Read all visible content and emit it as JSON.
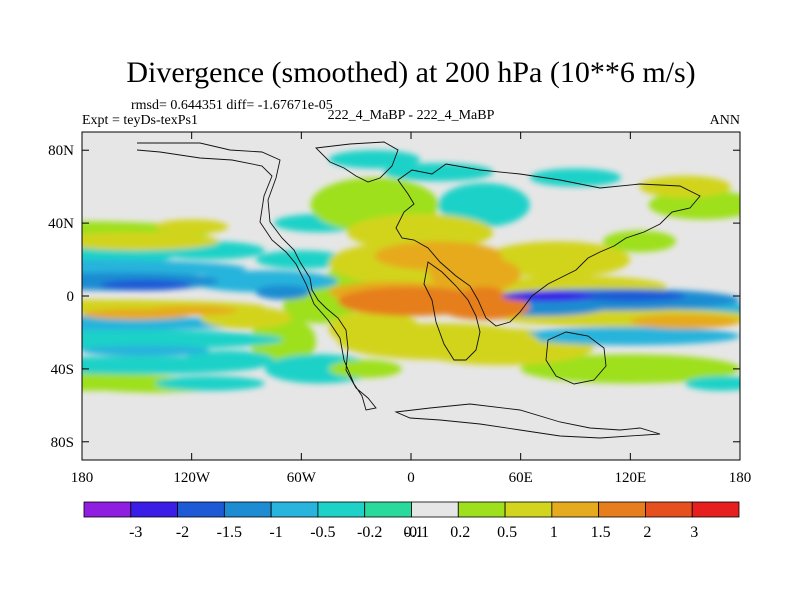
{
  "chart_data": {
    "type": "heatmap",
    "title": "Divergence (smoothed) at 200 hPa (10**6 m/s)",
    "stats_text": "rmsd= 0.644351 diff= -1.67671e-05",
    "left_label": "Expt = teyDs-texPs1",
    "center_label": "222_4_MaBP - 222_4_MaBP",
    "right_label": "ANN",
    "x_range": [
      -180,
      180
    ],
    "y_range": [
      -90,
      90
    ],
    "x_ticks": [
      {
        "value": -180,
        "label": "180"
      },
      {
        "value": -120,
        "label": "120W"
      },
      {
        "value": -60,
        "label": "60W"
      },
      {
        "value": 0,
        "label": "0"
      },
      {
        "value": 60,
        "label": "60E"
      },
      {
        "value": 120,
        "label": "120E"
      },
      {
        "value": 180,
        "label": "180"
      }
    ],
    "y_ticks": [
      {
        "value": 80,
        "label": "80N"
      },
      {
        "value": 40,
        "label": "40N"
      },
      {
        "value": 0,
        "label": "0"
      },
      {
        "value": -40,
        "label": "40S"
      },
      {
        "value": -80,
        "label": "80S"
      }
    ],
    "colorbar": {
      "labels": [
        "-3",
        "-2",
        "-1.5",
        "-1",
        "-0.5",
        "-0.2",
        "-0.1",
        "0.1",
        "0.2",
        "0.5",
        "1",
        "1.5",
        "2",
        "3"
      ],
      "colors": [
        "#8f1ee0",
        "#3a1ee8",
        "#1e5ad6",
        "#1e8cd2",
        "#28b4dc",
        "#1ed2c8",
        "#2ad99c",
        "#e6e6e6",
        "#9ee01e",
        "#d2d41e",
        "#e6aa1e",
        "#e67e1e",
        "#e6501e",
        "#e61e1e"
      ]
    },
    "features": [
      {
        "lon": -180,
        "lat": 15,
        "w": 90,
        "h": 5,
        "value": -0.8
      },
      {
        "lon": -160,
        "lat": 8,
        "w": 55,
        "h": 5,
        "value": -1.2
      },
      {
        "lon": -145,
        "lat": 6,
        "w": 25,
        "h": 3,
        "value": -1.7
      },
      {
        "lon": -80,
        "lat": 8,
        "w": 40,
        "h": 6,
        "value": -0.8
      },
      {
        "lon": -70,
        "lat": 2,
        "w": 15,
        "h": 4,
        "value": -1.2
      },
      {
        "lon": -180,
        "lat": -6,
        "w": 100,
        "h": 4,
        "value": 0.8
      },
      {
        "lon": -150,
        "lat": -10,
        "w": 30,
        "h": 3,
        "value": 1.2
      },
      {
        "lon": -120,
        "lat": -8,
        "w": 25,
        "h": 2.5,
        "value": 1.2
      },
      {
        "lon": -180,
        "lat": -15,
        "w": 100,
        "h": 4,
        "value": -0.7
      },
      {
        "lon": -90,
        "lat": -12,
        "w": 25,
        "h": 6,
        "value": 0.7
      },
      {
        "lon": -180,
        "lat": -24,
        "w": 110,
        "h": 6,
        "value": -0.35
      },
      {
        "lon": -150,
        "lat": -38,
        "w": 70,
        "h": 5,
        "value": -0.4
      },
      {
        "lon": -145,
        "lat": -30,
        "w": 35,
        "h": 3,
        "value": -0.7
      },
      {
        "lon": -100,
        "lat": -35,
        "w": 25,
        "h": 5,
        "value": -0.4
      },
      {
        "lon": -180,
        "lat": -47,
        "w": 60,
        "h": 5,
        "value": 0.3
      },
      {
        "lon": -140,
        "lat": -50,
        "w": 35,
        "h": 3,
        "value": 0.3
      },
      {
        "lon": -110,
        "lat": -48,
        "w": 30,
        "h": 4,
        "value": -0.3
      },
      {
        "lon": -70,
        "lat": -25,
        "w": 18,
        "h": 14,
        "value": 0.3
      },
      {
        "lon": -50,
        "lat": -40,
        "w": 30,
        "h": 8,
        "value": -0.3
      },
      {
        "lon": -50,
        "lat": -5,
        "w": 20,
        "h": 10,
        "value": 0.3
      },
      {
        "lon": -30,
        "lat": 5,
        "w": 20,
        "h": 12,
        "value": 0.3
      },
      {
        "lon": -20,
        "lat": -18,
        "w": 25,
        "h": 10,
        "value": 0.7
      },
      {
        "lon": -25,
        "lat": -40,
        "w": 20,
        "h": 5,
        "value": 0.3
      },
      {
        "lon": -180,
        "lat": 35,
        "w": 70,
        "h": 6,
        "value": 0.35
      },
      {
        "lon": -150,
        "lat": 30,
        "w": 45,
        "h": 5,
        "value": 0.7
      },
      {
        "lon": -120,
        "lat": 38,
        "w": 20,
        "h": 4,
        "value": 0.7
      },
      {
        "lon": -170,
        "lat": 22,
        "w": 40,
        "h": 5,
        "value": -0.3
      },
      {
        "lon": -110,
        "lat": 25,
        "w": 30,
        "h": 5,
        "value": -0.3
      },
      {
        "lon": -60,
        "lat": 20,
        "w": 25,
        "h": 5,
        "value": -0.3
      },
      {
        "lon": -50,
        "lat": 40,
        "w": 25,
        "h": 5,
        "value": -0.3
      },
      {
        "lon": -20,
        "lat": 50,
        "w": 35,
        "h": 15,
        "value": 0.3
      },
      {
        "lon": -10,
        "lat": 35,
        "w": 25,
        "h": 6,
        "value": 0.4
      },
      {
        "lon": 0,
        "lat": 18,
        "w": 45,
        "h": 12,
        "value": 0.8
      },
      {
        "lon": 5,
        "lat": 35,
        "w": 40,
        "h": 10,
        "value": 0.6
      },
      {
        "lon": 15,
        "lat": 22,
        "w": 35,
        "h": 8,
        "value": 1.2
      },
      {
        "lon": 35,
        "lat": 12,
        "w": 25,
        "h": 10,
        "value": 1.2
      },
      {
        "lon": -10,
        "lat": 2,
        "w": 35,
        "h": 6,
        "value": 1.0
      },
      {
        "lon": 0,
        "lat": -3,
        "w": 40,
        "h": 8,
        "value": 1.8
      },
      {
        "lon": 40,
        "lat": -6,
        "w": 25,
        "h": 7,
        "value": 1.5
      },
      {
        "lon": 40,
        "lat": 0,
        "w": 12,
        "h": 5,
        "value": 1.8
      },
      {
        "lon": 15,
        "lat": -25,
        "w": 55,
        "h": 10,
        "value": 0.8
      },
      {
        "lon": 50,
        "lat": -28,
        "w": 50,
        "h": 10,
        "value": 0.6
      },
      {
        "lon": 40,
        "lat": 50,
        "w": 25,
        "h": 12,
        "value": -0.3
      },
      {
        "lon": -20,
        "lat": 75,
        "w": 25,
        "h": 5,
        "value": -0.3
      },
      {
        "lon": 15,
        "lat": 68,
        "w": 30,
        "h": 5,
        "value": -0.3
      },
      {
        "lon": 90,
        "lat": 65,
        "w": 25,
        "h": 5,
        "value": -0.3
      },
      {
        "lon": 150,
        "lat": 60,
        "w": 25,
        "h": 6,
        "value": 0.7
      },
      {
        "lon": 160,
        "lat": 50,
        "w": 30,
        "h": 8,
        "value": 0.4
      },
      {
        "lon": 80,
        "lat": 20,
        "w": 40,
        "h": 10,
        "value": 0.5
      },
      {
        "lon": 90,
        "lat": 5,
        "w": 50,
        "h": 6,
        "value": 0.7
      },
      {
        "lon": 70,
        "lat": -5,
        "w": 40,
        "h": 6,
        "value": -1.2
      },
      {
        "lon": 110,
        "lat": -2,
        "w": 70,
        "h": 6,
        "value": -1.2
      },
      {
        "lon": 75,
        "lat": 0,
        "w": 25,
        "h": 3,
        "value": -2.2
      },
      {
        "lon": 120,
        "lat": 0,
        "w": 30,
        "h": 3,
        "value": -1.7
      },
      {
        "lon": 160,
        "lat": -8,
        "w": 25,
        "h": 6,
        "value": -0.5
      },
      {
        "lon": 120,
        "lat": -12,
        "w": 70,
        "h": 5,
        "value": 0.8
      },
      {
        "lon": 150,
        "lat": -14,
        "w": 30,
        "h": 4,
        "value": 1.2
      },
      {
        "lon": 120,
        "lat": -22,
        "w": 60,
        "h": 5,
        "value": -0.6
      },
      {
        "lon": 120,
        "lat": -40,
        "w": 60,
        "h": 8,
        "value": 0.3
      },
      {
        "lon": 170,
        "lat": -48,
        "w": 20,
        "h": 4,
        "value": -0.3
      },
      {
        "lon": 125,
        "lat": 30,
        "w": 20,
        "h": 6,
        "value": 0.3
      }
    ]
  }
}
